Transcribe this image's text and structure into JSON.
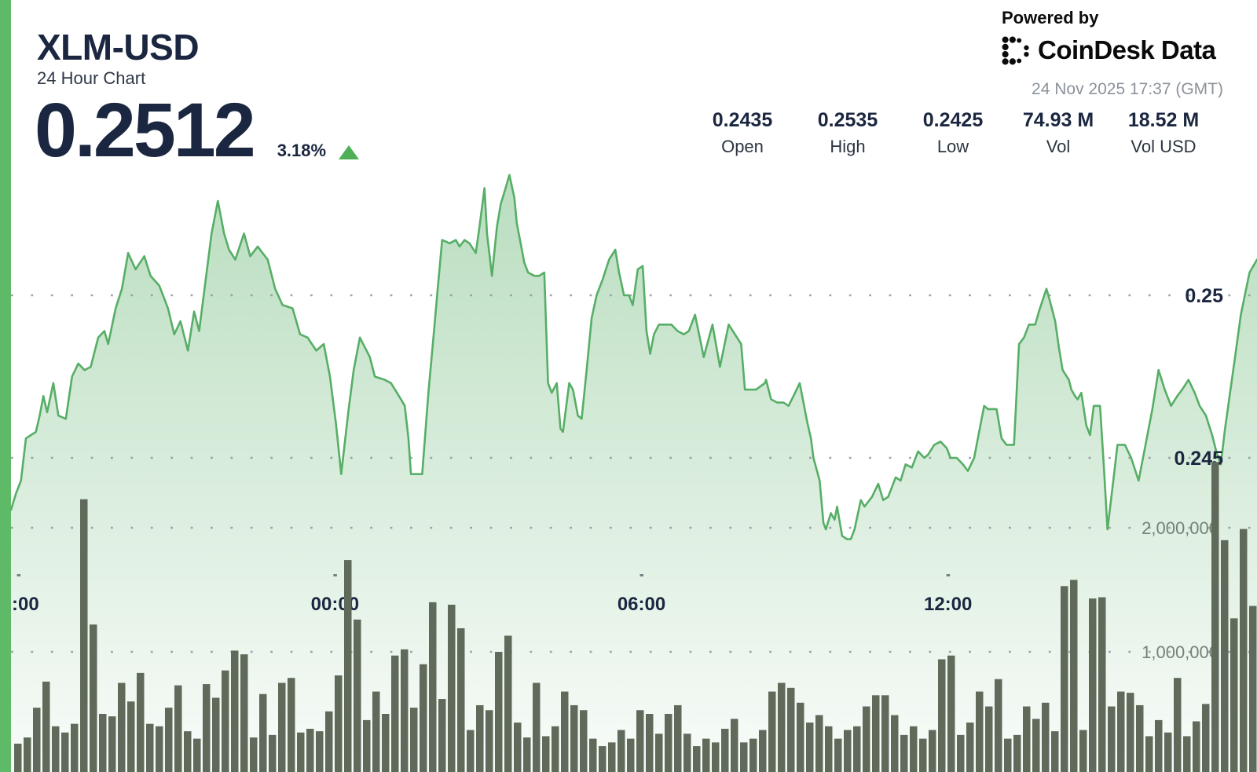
{
  "header": {
    "symbol": "XLM-USD",
    "subtitle": "24 Hour Chart",
    "price": "0.2512",
    "change_percent": "3.18%",
    "change_direction": "up"
  },
  "branding": {
    "powered_by": "Powered by",
    "brand_name": "CoinDesk Data",
    "timestamp": "24 Nov 2025 17:37 (GMT)"
  },
  "stats": [
    {
      "value": "0.2435",
      "label": "Open"
    },
    {
      "value": "0.2535",
      "label": "High"
    },
    {
      "value": "0.2425",
      "label": "Low"
    },
    {
      "value": "74.93 M",
      "label": "Vol"
    },
    {
      "value": "18.52 M",
      "label": "Vol USD"
    }
  ],
  "colors": {
    "accent_green": "#5fba68",
    "line_green": "#57ae66",
    "fill_top": "rgba(87,174,102,0.42)",
    "fill_bottom": "rgba(87,174,102,0.04)",
    "bar_color": "#5f6a5a",
    "text_dark": "#1b2740",
    "muted_gray": "#8b929a",
    "grid_dot": "#8f969c",
    "vol_label": "#647368",
    "up_triangle": "#4db056"
  },
  "chart_data": {
    "type": "area+bar",
    "title": "XLM-USD 24 Hour Chart",
    "x_axis": {
      "ticks": [
        {
          "label": ":00",
          "t": 0.001,
          "anchor": "start"
        },
        {
          "label": "00:00",
          "t": 0.26,
          "anchor": "middle"
        },
        {
          "label": "06:00",
          "t": 0.506,
          "anchor": "middle"
        },
        {
          "label": "12:00",
          "t": 0.752,
          "anchor": "middle"
        }
      ]
    },
    "price_axis": {
      "ticks": [
        {
          "value": 0.25,
          "label": "0.25"
        },
        {
          "value": 0.245,
          "label": "0.245"
        }
      ]
    },
    "volume_axis": {
      "ticks": [
        {
          "value": 2000000,
          "label": "2,000,000"
        },
        {
          "value": 1000000,
          "label": "1,000,000"
        }
      ]
    },
    "price": {
      "open": 0.2435,
      "high": 0.2535,
      "low": 0.2425,
      "last": 0.2512,
      "points": [
        [
          0.0,
          0.2434
        ],
        [
          0.004,
          0.2439
        ],
        [
          0.008,
          0.2443
        ],
        [
          0.012,
          0.2456
        ],
        [
          0.02,
          0.2458
        ],
        [
          0.023,
          0.2463
        ],
        [
          0.026,
          0.2469
        ],
        [
          0.029,
          0.2464
        ],
        [
          0.034,
          0.2473
        ],
        [
          0.038,
          0.2463
        ],
        [
          0.044,
          0.2462
        ],
        [
          0.049,
          0.2475
        ],
        [
          0.054,
          0.2479
        ],
        [
          0.059,
          0.2477
        ],
        [
          0.064,
          0.2478
        ],
        [
          0.07,
          0.2487
        ],
        [
          0.075,
          0.2489
        ],
        [
          0.078,
          0.2485
        ],
        [
          0.084,
          0.2496
        ],
        [
          0.089,
          0.2502
        ],
        [
          0.094,
          0.2513
        ],
        [
          0.1,
          0.2508
        ],
        [
          0.107,
          0.2512
        ],
        [
          0.112,
          0.2506
        ],
        [
          0.119,
          0.2503
        ],
        [
          0.122,
          0.25
        ],
        [
          0.126,
          0.2496
        ],
        [
          0.131,
          0.2488
        ],
        [
          0.136,
          0.2492
        ],
        [
          0.142,
          0.2483
        ],
        [
          0.147,
          0.2495
        ],
        [
          0.151,
          0.2489
        ],
        [
          0.156,
          0.2504
        ],
        [
          0.161,
          0.2519
        ],
        [
          0.166,
          0.2529
        ],
        [
          0.171,
          0.2519
        ],
        [
          0.175,
          0.2514
        ],
        [
          0.18,
          0.2511
        ],
        [
          0.187,
          0.2519
        ],
        [
          0.192,
          0.2512
        ],
        [
          0.198,
          0.2515
        ],
        [
          0.206,
          0.2511
        ],
        [
          0.212,
          0.2502
        ],
        [
          0.218,
          0.2497
        ],
        [
          0.226,
          0.2496
        ],
        [
          0.232,
          0.2488
        ],
        [
          0.238,
          0.2487
        ],
        [
          0.245,
          0.2483
        ],
        [
          0.251,
          0.2485
        ],
        [
          0.256,
          0.2475
        ],
        [
          0.261,
          0.246
        ],
        [
          0.265,
          0.2445
        ],
        [
          0.271,
          0.2465
        ],
        [
          0.275,
          0.2477
        ],
        [
          0.28,
          0.2487
        ],
        [
          0.288,
          0.2481
        ],
        [
          0.292,
          0.2475
        ],
        [
          0.3,
          0.2474
        ],
        [
          0.305,
          0.2473
        ],
        [
          0.313,
          0.2468
        ],
        [
          0.316,
          0.2466
        ],
        [
          0.319,
          0.2456
        ],
        [
          0.321,
          0.2445
        ],
        [
          0.33,
          0.2445
        ],
        [
          0.335,
          0.247
        ],
        [
          0.339,
          0.2487
        ],
        [
          0.342,
          0.25
        ],
        [
          0.346,
          0.2517
        ],
        [
          0.352,
          0.2516
        ],
        [
          0.357,
          0.2517
        ],
        [
          0.36,
          0.2515
        ],
        [
          0.364,
          0.2517
        ],
        [
          0.368,
          0.2516
        ],
        [
          0.373,
          0.2513
        ],
        [
          0.376,
          0.2521
        ],
        [
          0.38,
          0.2533
        ],
        [
          0.382,
          0.2519
        ],
        [
          0.386,
          0.2506
        ],
        [
          0.39,
          0.2521
        ],
        [
          0.393,
          0.2528
        ],
        [
          0.397,
          0.2533
        ],
        [
          0.4,
          0.2537
        ],
        [
          0.404,
          0.253
        ],
        [
          0.406,
          0.2522
        ],
        [
          0.409,
          0.2516
        ],
        [
          0.412,
          0.251
        ],
        [
          0.415,
          0.2507
        ],
        [
          0.42,
          0.2506
        ],
        [
          0.424,
          0.2506
        ],
        [
          0.428,
          0.2507
        ],
        [
          0.431,
          0.2473
        ],
        [
          0.434,
          0.247
        ],
        [
          0.438,
          0.2473
        ],
        [
          0.441,
          0.2459
        ],
        [
          0.443,
          0.2458
        ],
        [
          0.448,
          0.2473
        ],
        [
          0.451,
          0.2471
        ],
        [
          0.455,
          0.2463
        ],
        [
          0.458,
          0.2462
        ],
        [
          0.462,
          0.2477
        ],
        [
          0.466,
          0.2493
        ],
        [
          0.47,
          0.25
        ],
        [
          0.475,
          0.2505
        ],
        [
          0.48,
          0.2511
        ],
        [
          0.485,
          0.2514
        ],
        [
          0.488,
          0.2507
        ],
        [
          0.492,
          0.25
        ],
        [
          0.496,
          0.25
        ],
        [
          0.499,
          0.2497
        ],
        [
          0.503,
          0.2508
        ],
        [
          0.507,
          0.2509
        ],
        [
          0.51,
          0.2489
        ],
        [
          0.513,
          0.2482
        ],
        [
          0.516,
          0.2488
        ],
        [
          0.52,
          0.2491
        ],
        [
          0.526,
          0.2491
        ],
        [
          0.53,
          0.2491
        ],
        [
          0.535,
          0.2489
        ],
        [
          0.54,
          0.2488
        ],
        [
          0.544,
          0.2489
        ],
        [
          0.549,
          0.2494
        ],
        [
          0.556,
          0.2481
        ],
        [
          0.563,
          0.2491
        ],
        [
          0.569,
          0.2478
        ],
        [
          0.576,
          0.2491
        ],
        [
          0.581,
          0.2488
        ],
        [
          0.586,
          0.2485
        ],
        [
          0.589,
          0.2471
        ],
        [
          0.595,
          0.2471
        ],
        [
          0.598,
          0.2471
        ],
        [
          0.605,
          0.2473
        ],
        [
          0.606,
          0.2474
        ],
        [
          0.61,
          0.2468
        ],
        [
          0.615,
          0.2467
        ],
        [
          0.62,
          0.2467
        ],
        [
          0.624,
          0.2466
        ],
        [
          0.628,
          0.2469
        ],
        [
          0.633,
          0.2473
        ],
        [
          0.639,
          0.2461
        ],
        [
          0.642,
          0.2456
        ],
        [
          0.644,
          0.245
        ],
        [
          0.649,
          0.2443
        ],
        [
          0.652,
          0.243
        ],
        [
          0.654,
          0.2428
        ],
        [
          0.658,
          0.2433
        ],
        [
          0.661,
          0.2431
        ],
        [
          0.663,
          0.2435
        ],
        [
          0.667,
          0.2426
        ],
        [
          0.671,
          0.2425
        ],
        [
          0.674,
          0.2425
        ],
        [
          0.677,
          0.2428
        ],
        [
          0.682,
          0.2437
        ],
        [
          0.685,
          0.2435
        ],
        [
          0.691,
          0.2438
        ],
        [
          0.696,
          0.2442
        ],
        [
          0.7,
          0.2437
        ],
        [
          0.704,
          0.2438
        ],
        [
          0.71,
          0.2444
        ],
        [
          0.714,
          0.2443
        ],
        [
          0.718,
          0.2448
        ],
        [
          0.723,
          0.2447
        ],
        [
          0.728,
          0.2452
        ],
        [
          0.733,
          0.245
        ],
        [
          0.736,
          0.2451
        ],
        [
          0.741,
          0.2454
        ],
        [
          0.746,
          0.2455
        ],
        [
          0.751,
          0.2453
        ],
        [
          0.754,
          0.245
        ],
        [
          0.759,
          0.245
        ],
        [
          0.764,
          0.2448
        ],
        [
          0.768,
          0.2446
        ],
        [
          0.773,
          0.245
        ],
        [
          0.777,
          0.2458
        ],
        [
          0.781,
          0.2466
        ],
        [
          0.784,
          0.2465
        ],
        [
          0.788,
          0.2465
        ],
        [
          0.791,
          0.2465
        ],
        [
          0.795,
          0.2456
        ],
        [
          0.799,
          0.2454
        ],
        [
          0.801,
          0.2454
        ],
        [
          0.805,
          0.2454
        ],
        [
          0.809,
          0.2485
        ],
        [
          0.813,
          0.2487
        ],
        [
          0.817,
          0.2491
        ],
        [
          0.822,
          0.2491
        ],
        [
          0.825,
          0.2495
        ],
        [
          0.831,
          0.2502
        ],
        [
          0.834,
          0.2498
        ],
        [
          0.838,
          0.2492
        ],
        [
          0.841,
          0.2484
        ],
        [
          0.844,
          0.2477
        ],
        [
          0.849,
          0.2474
        ],
        [
          0.851,
          0.2471
        ],
        [
          0.854,
          0.2469
        ],
        [
          0.856,
          0.2468
        ],
        [
          0.859,
          0.247
        ],
        [
          0.863,
          0.246
        ],
        [
          0.866,
          0.2457
        ],
        [
          0.869,
          0.2466
        ],
        [
          0.874,
          0.2466
        ],
        [
          0.877,
          0.2448
        ],
        [
          0.88,
          0.2428
        ],
        [
          0.885,
          0.2444
        ],
        [
          0.888,
          0.2454
        ],
        [
          0.892,
          0.2454
        ],
        [
          0.894,
          0.2454
        ],
        [
          0.899,
          0.245
        ],
        [
          0.905,
          0.2443
        ],
        [
          0.91,
          0.2453
        ],
        [
          0.916,
          0.2465
        ],
        [
          0.921,
          0.2477
        ],
        [
          0.926,
          0.2471
        ],
        [
          0.931,
          0.2466
        ],
        [
          0.936,
          0.2469
        ],
        [
          0.94,
          0.2471
        ],
        [
          0.945,
          0.2474
        ],
        [
          0.95,
          0.247
        ],
        [
          0.954,
          0.2466
        ],
        [
          0.959,
          0.2463
        ],
        [
          0.964,
          0.2457
        ],
        [
          0.968,
          0.2451
        ],
        [
          0.971,
          0.2448
        ],
        [
          0.974,
          0.2458
        ],
        [
          0.978,
          0.2469
        ],
        [
          0.982,
          0.248
        ],
        [
          0.987,
          0.2494
        ],
        [
          0.994,
          0.2507
        ],
        [
          1.0,
          0.2511
        ]
      ]
    },
    "volume": {
      "values": [
        260000,
        310000,
        550000,
        760000,
        400000,
        350000,
        420000,
        2230000,
        1220000,
        500000,
        480000,
        750000,
        600000,
        830000,
        420000,
        400000,
        550000,
        730000,
        360000,
        300000,
        740000,
        630000,
        850000,
        1010000,
        980000,
        310000,
        660000,
        330000,
        750000,
        790000,
        350000,
        380000,
        360000,
        520000,
        810000,
        1740000,
        1260000,
        450000,
        680000,
        500000,
        970000,
        1020000,
        550000,
        900000,
        1400000,
        620000,
        1380000,
        1190000,
        370000,
        570000,
        530000,
        1000000,
        1130000,
        430000,
        310000,
        750000,
        320000,
        400000,
        680000,
        570000,
        530000,
        300000,
        240000,
        270000,
        370000,
        300000,
        530000,
        500000,
        340000,
        500000,
        570000,
        340000,
        240000,
        300000,
        270000,
        380000,
        460000,
        270000,
        300000,
        370000,
        680000,
        750000,
        710000,
        590000,
        430000,
        490000,
        400000,
        300000,
        370000,
        400000,
        560000,
        650000,
        650000,
        490000,
        330000,
        400000,
        300000,
        370000,
        940000,
        970000,
        330000,
        430000,
        680000,
        560000,
        780000,
        300000,
        330000,
        560000,
        460000,
        590000,
        360000,
        1530000,
        1580000,
        370000,
        1430000,
        1440000,
        560000,
        680000,
        670000,
        570000,
        320000,
        450000,
        350000,
        790000,
        320000,
        440000,
        580000,
        2530000,
        1900000,
        1270000,
        1990000,
        1370000
      ]
    }
  }
}
